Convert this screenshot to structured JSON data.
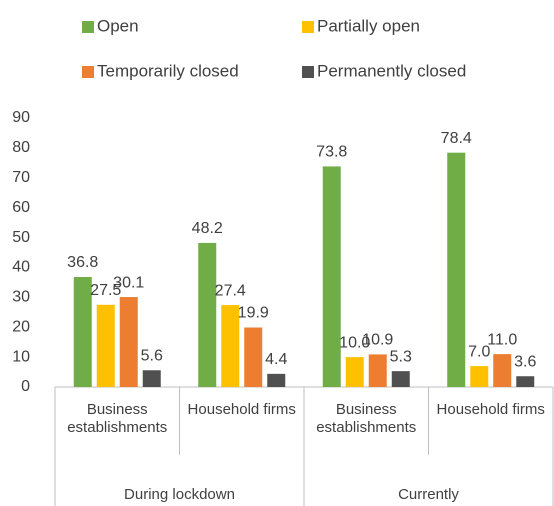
{
  "chart_data": {
    "type": "bar",
    "categories": [
      "Business\nestablishments",
      "Household firms",
      "Business\nestablishments",
      "Household firms"
    ],
    "groups": [
      "During lockdown",
      "Currently"
    ],
    "series": [
      {
        "name": "Open",
        "color": "#70ad47",
        "values": [
          36.8,
          48.2,
          73.8,
          78.4
        ],
        "value_labels": [
          "36.8",
          "48.2",
          "73.8",
          "78.4"
        ]
      },
      {
        "name": "Partially open",
        "color": "#ffc000",
        "values": [
          27.5,
          27.4,
          10.0,
          7.0
        ],
        "value_labels": [
          "27.5",
          "27.4",
          "10.0",
          "7.0"
        ]
      },
      {
        "name": "Temporarily closed",
        "color": "#ed7d31",
        "values": [
          30.1,
          19.9,
          10.9,
          11.0
        ],
        "value_labels": [
          "30.1",
          "19.9",
          "10.9",
          "11.0"
        ]
      },
      {
        "name": "Permanently closed",
        "color": "#505050",
        "values": [
          5.6,
          4.4,
          5.3,
          3.6
        ],
        "value_labels": [
          "5.6",
          "4.4",
          "5.3",
          "3.6"
        ]
      }
    ],
    "ylim": [
      0,
      90
    ],
    "yticks": [
      0,
      10,
      20,
      30,
      40,
      50,
      60,
      70,
      80,
      90
    ],
    "grid": false,
    "legend": "top"
  }
}
